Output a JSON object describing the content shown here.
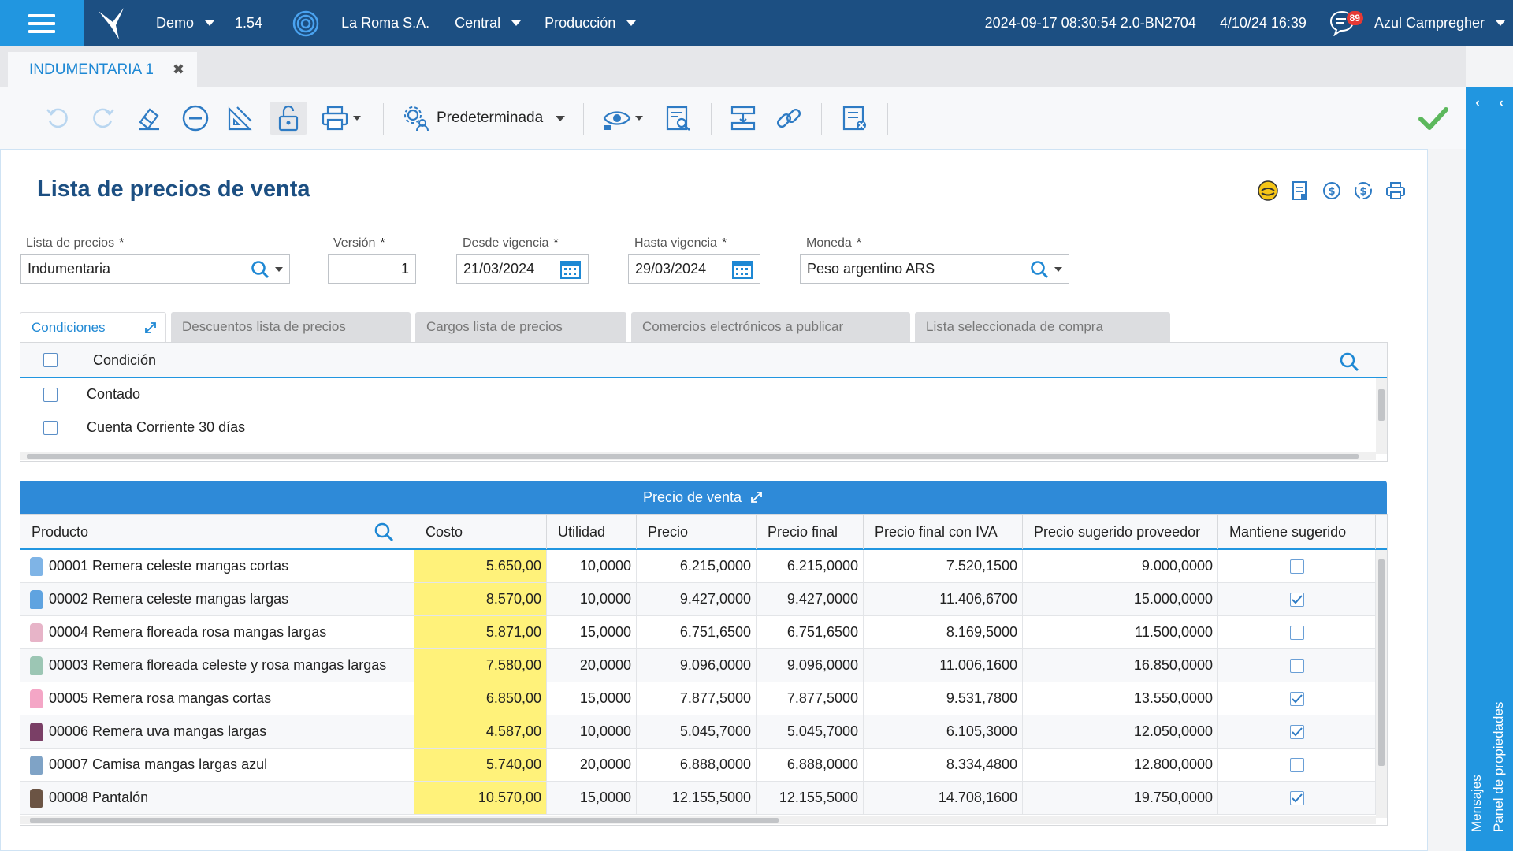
{
  "topbar": {
    "company_short": "Demo",
    "version": "1.54",
    "company": "La Roma S.A.",
    "branch": "Central",
    "environment": "Producción",
    "build": "2024-09-17 08:30:54 2.0-BN2704",
    "datetime": "4/10/24 16:39",
    "notifications": "89",
    "user": "Azul Campregher"
  },
  "tab": {
    "label": "INDUMENTARIA 1",
    "close": "✖"
  },
  "toolbar": {
    "view_label": "Predeterminada"
  },
  "right_panel": {
    "messages": "Mensajes",
    "properties": "Panel de propiedades"
  },
  "page": {
    "title": "Lista de precios de venta"
  },
  "form": {
    "price_list": {
      "label": "Lista de precios",
      "value": "Indumentaria"
    },
    "version": {
      "label": "Versión",
      "value": "1"
    },
    "from": {
      "label": "Desde vigencia",
      "value": "21/03/2024"
    },
    "to": {
      "label": "Hasta vigencia",
      "value": "29/03/2024"
    },
    "currency": {
      "label": "Moneda",
      "value": "Peso argentino ARS"
    },
    "required_mark": "*"
  },
  "subtabs": [
    "Condiciones",
    "Descuentos lista de precios",
    "Cargos lista de precios",
    "Comercios electrónicos a publicar",
    "Lista seleccionada de compra"
  ],
  "conditions": {
    "header": "Condición",
    "rows": [
      "Contado",
      "Cuenta Corriente 30 días"
    ]
  },
  "prices": {
    "section_title": "Precio de venta",
    "columns": [
      "Producto",
      "Costo",
      "Utilidad",
      "Precio",
      "Precio final",
      "Precio final con IVA",
      "Precio sugerido proveedor",
      "Mantiene sugerido"
    ],
    "rows": [
      {
        "product": "00001 Remera celeste mangas cortas",
        "cost": "5.650,00",
        "margin": "10,0000",
        "price": "6.215,0000",
        "final": "6.215,0000",
        "final_iva": "7.520,1500",
        "suggested": "9.000,0000",
        "keeps": false,
        "color": "#7fb4e6"
      },
      {
        "product": "00002 Remera celeste mangas largas",
        "cost": "8.570,00",
        "margin": "10,0000",
        "price": "9.427,0000",
        "final": "9.427,0000",
        "final_iva": "11.406,6700",
        "suggested": "15.000,0000",
        "keeps": true,
        "color": "#5fa3e0"
      },
      {
        "product": "00004 Remera floreada rosa mangas largas",
        "cost": "5.871,00",
        "margin": "15,0000",
        "price": "6.751,6500",
        "final": "6.751,6500",
        "final_iva": "8.169,5000",
        "suggested": "11.500,0000",
        "keeps": false,
        "color": "#e7b4c8"
      },
      {
        "product": "00003 Remera floreada celeste y rosa mangas largas",
        "cost": "7.580,00",
        "margin": "20,0000",
        "price": "9.096,0000",
        "final": "9.096,0000",
        "final_iva": "11.006,1600",
        "suggested": "16.850,0000",
        "keeps": false,
        "color": "#9cc6b4"
      },
      {
        "product": "00005 Remera rosa mangas cortas",
        "cost": "6.850,00",
        "margin": "15,0000",
        "price": "7.877,5000",
        "final": "7.877,5000",
        "final_iva": "9.531,7800",
        "suggested": "13.550,0000",
        "keeps": true,
        "color": "#f4a6c6"
      },
      {
        "product": "00006 Remera uva mangas largas",
        "cost": "4.587,00",
        "margin": "10,0000",
        "price": "5.045,7000",
        "final": "5.045,7000",
        "final_iva": "6.105,3000",
        "suggested": "12.050,0000",
        "keeps": true,
        "color": "#7a3f66"
      },
      {
        "product": "00007 Camisa mangas largas azul",
        "cost": "5.740,00",
        "margin": "20,0000",
        "price": "6.888,0000",
        "final": "6.888,0000",
        "final_iva": "8.334,4800",
        "suggested": "12.800,0000",
        "keeps": false,
        "color": "#7fa3c6"
      },
      {
        "product": "00008 Pantalón",
        "cost": "10.570,00",
        "margin": "15,0000",
        "price": "12.155,5000",
        "final": "12.155,5000",
        "final_iva": "14.708,1600",
        "suggested": "19.750,0000",
        "keeps": true,
        "color": "#6b5444"
      }
    ]
  },
  "colors": {
    "accent": "#2196e0",
    "navy": "#1c4f82",
    "cost_highlight": "#fff27a"
  }
}
